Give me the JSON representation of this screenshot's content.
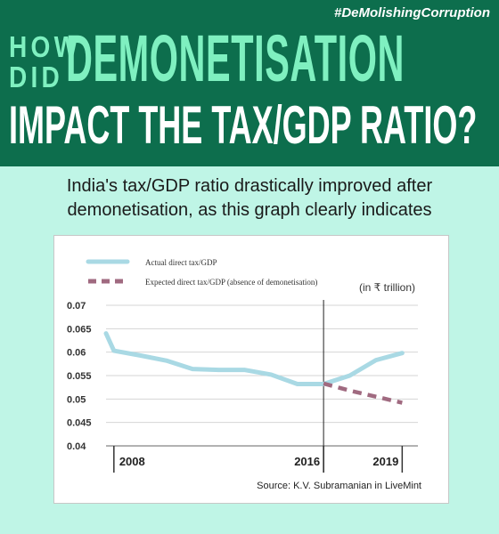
{
  "header": {
    "hashtag": "#DeMolishingCorruption",
    "line1_small": [
      "HOW",
      "DID"
    ],
    "line1_big": "DEMONETISATION",
    "line2": "IMPACT THE TAX/GDP RATIO?"
  },
  "caption": {
    "line1": "India's tax/GDP ratio drastically improved after",
    "line2": "demonetisation, as this graph clearly indicates"
  },
  "colors": {
    "banner": "#0d6e4d",
    "accent_text": "#7ff0c0",
    "background": "#bff5e6",
    "actual_line": "#a9d9e4",
    "expected_line": "#a06a80"
  },
  "chart_data": {
    "type": "line",
    "x": [
      2008,
      2009,
      2010,
      2011,
      2012,
      2013,
      2014,
      2015,
      2016,
      2017,
      2018,
      2019
    ],
    "ylim": [
      0.04,
      0.07
    ],
    "yticks": [
      "0.07",
      "0.065",
      "0.06",
      "0.055",
      "0.05",
      "0.045",
      "0.04"
    ],
    "ytick_values": [
      0.07,
      0.065,
      0.06,
      0.055,
      0.05,
      0.045,
      0.04
    ],
    "xtick_labels": [
      "2008",
      "2016",
      "2019"
    ],
    "xtick_values": [
      2008,
      2016,
      2019
    ],
    "vline_x": 2016,
    "unit_label": "(in ₹ trillion)",
    "source": "Source: K.V. Subramanian in LiveMint",
    "legend_placement": "top-left",
    "series": [
      {
        "name": "Actual direct tax/GDP",
        "style": "solid",
        "x": [
          2007.7,
          2008,
          2009,
          2010,
          2011,
          2012,
          2013,
          2014,
          2015,
          2016,
          2017,
          2018,
          2019
        ],
        "values": [
          0.064,
          0.0603,
          0.0593,
          0.0582,
          0.0564,
          0.0562,
          0.0562,
          0.0552,
          0.0532,
          0.0532,
          0.055,
          0.0583,
          0.0598
        ]
      },
      {
        "name": "Expected direct tax/GDP (absence of demonetisation)",
        "style": "dashed",
        "x": [
          2016,
          2017,
          2018,
          2019
        ],
        "values": [
          0.0533,
          0.0518,
          0.0505,
          0.0492
        ]
      }
    ]
  }
}
